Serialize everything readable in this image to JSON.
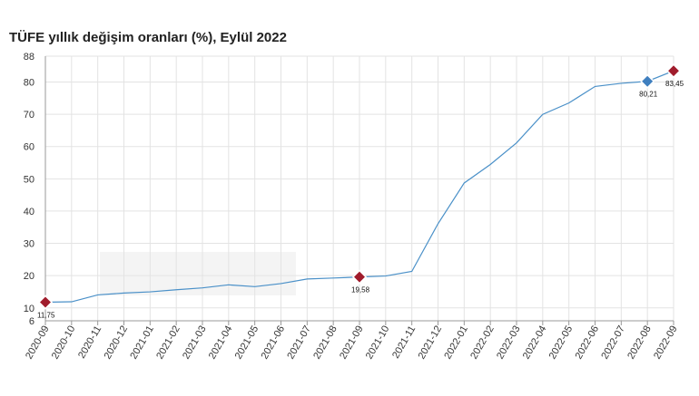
{
  "chart_data": {
    "type": "line",
    "title": "TÜFE yıllık değişim oranları (%), Eylül 2022",
    "xlabel": "",
    "ylabel": "",
    "categories": [
      "2020-09",
      "2020-10",
      "2020-11",
      "2020-12",
      "2021-01",
      "2021-02",
      "2021-03",
      "2021-04",
      "2021-05",
      "2021-06",
      "2021-07",
      "2021-08",
      "2021-09",
      "2021-10",
      "2021-11",
      "2021-12",
      "2022-01",
      "2022-02",
      "2022-03",
      "2022-04",
      "2022-05",
      "2022-06",
      "2022-07",
      "2022-08",
      "2022-09"
    ],
    "series": [
      {
        "values": [
          11.75,
          11.89,
          14.03,
          14.6,
          14.97,
          15.61,
          16.19,
          17.14,
          16.59,
          17.53,
          18.95,
          19.25,
          19.58,
          19.89,
          21.31,
          36.08,
          48.69,
          54.44,
          61.14,
          69.97,
          73.5,
          78.62,
          79.6,
          80.21,
          83.45
        ]
      }
    ],
    "ylim": [
      6,
      88
    ],
    "y_ticks": [
      "6",
      "10",
      "20",
      "30",
      "40",
      "50",
      "60",
      "70",
      "80",
      "88"
    ],
    "y_tick_values": [
      6,
      10,
      20,
      30,
      40,
      50,
      60,
      70,
      80,
      88
    ],
    "grid": true,
    "line_color": "#4a90c8",
    "highlights": [
      {
        "index": 0,
        "label": "11,75",
        "color": "#a01c2c"
      },
      {
        "index": 12,
        "label": "19,58",
        "color": "#a01c2c"
      },
      {
        "index": 23,
        "label": "80,21",
        "color": "#3f7fbf"
      },
      {
        "index": 24,
        "label": "83,45",
        "color": "#a01c2c"
      }
    ]
  }
}
